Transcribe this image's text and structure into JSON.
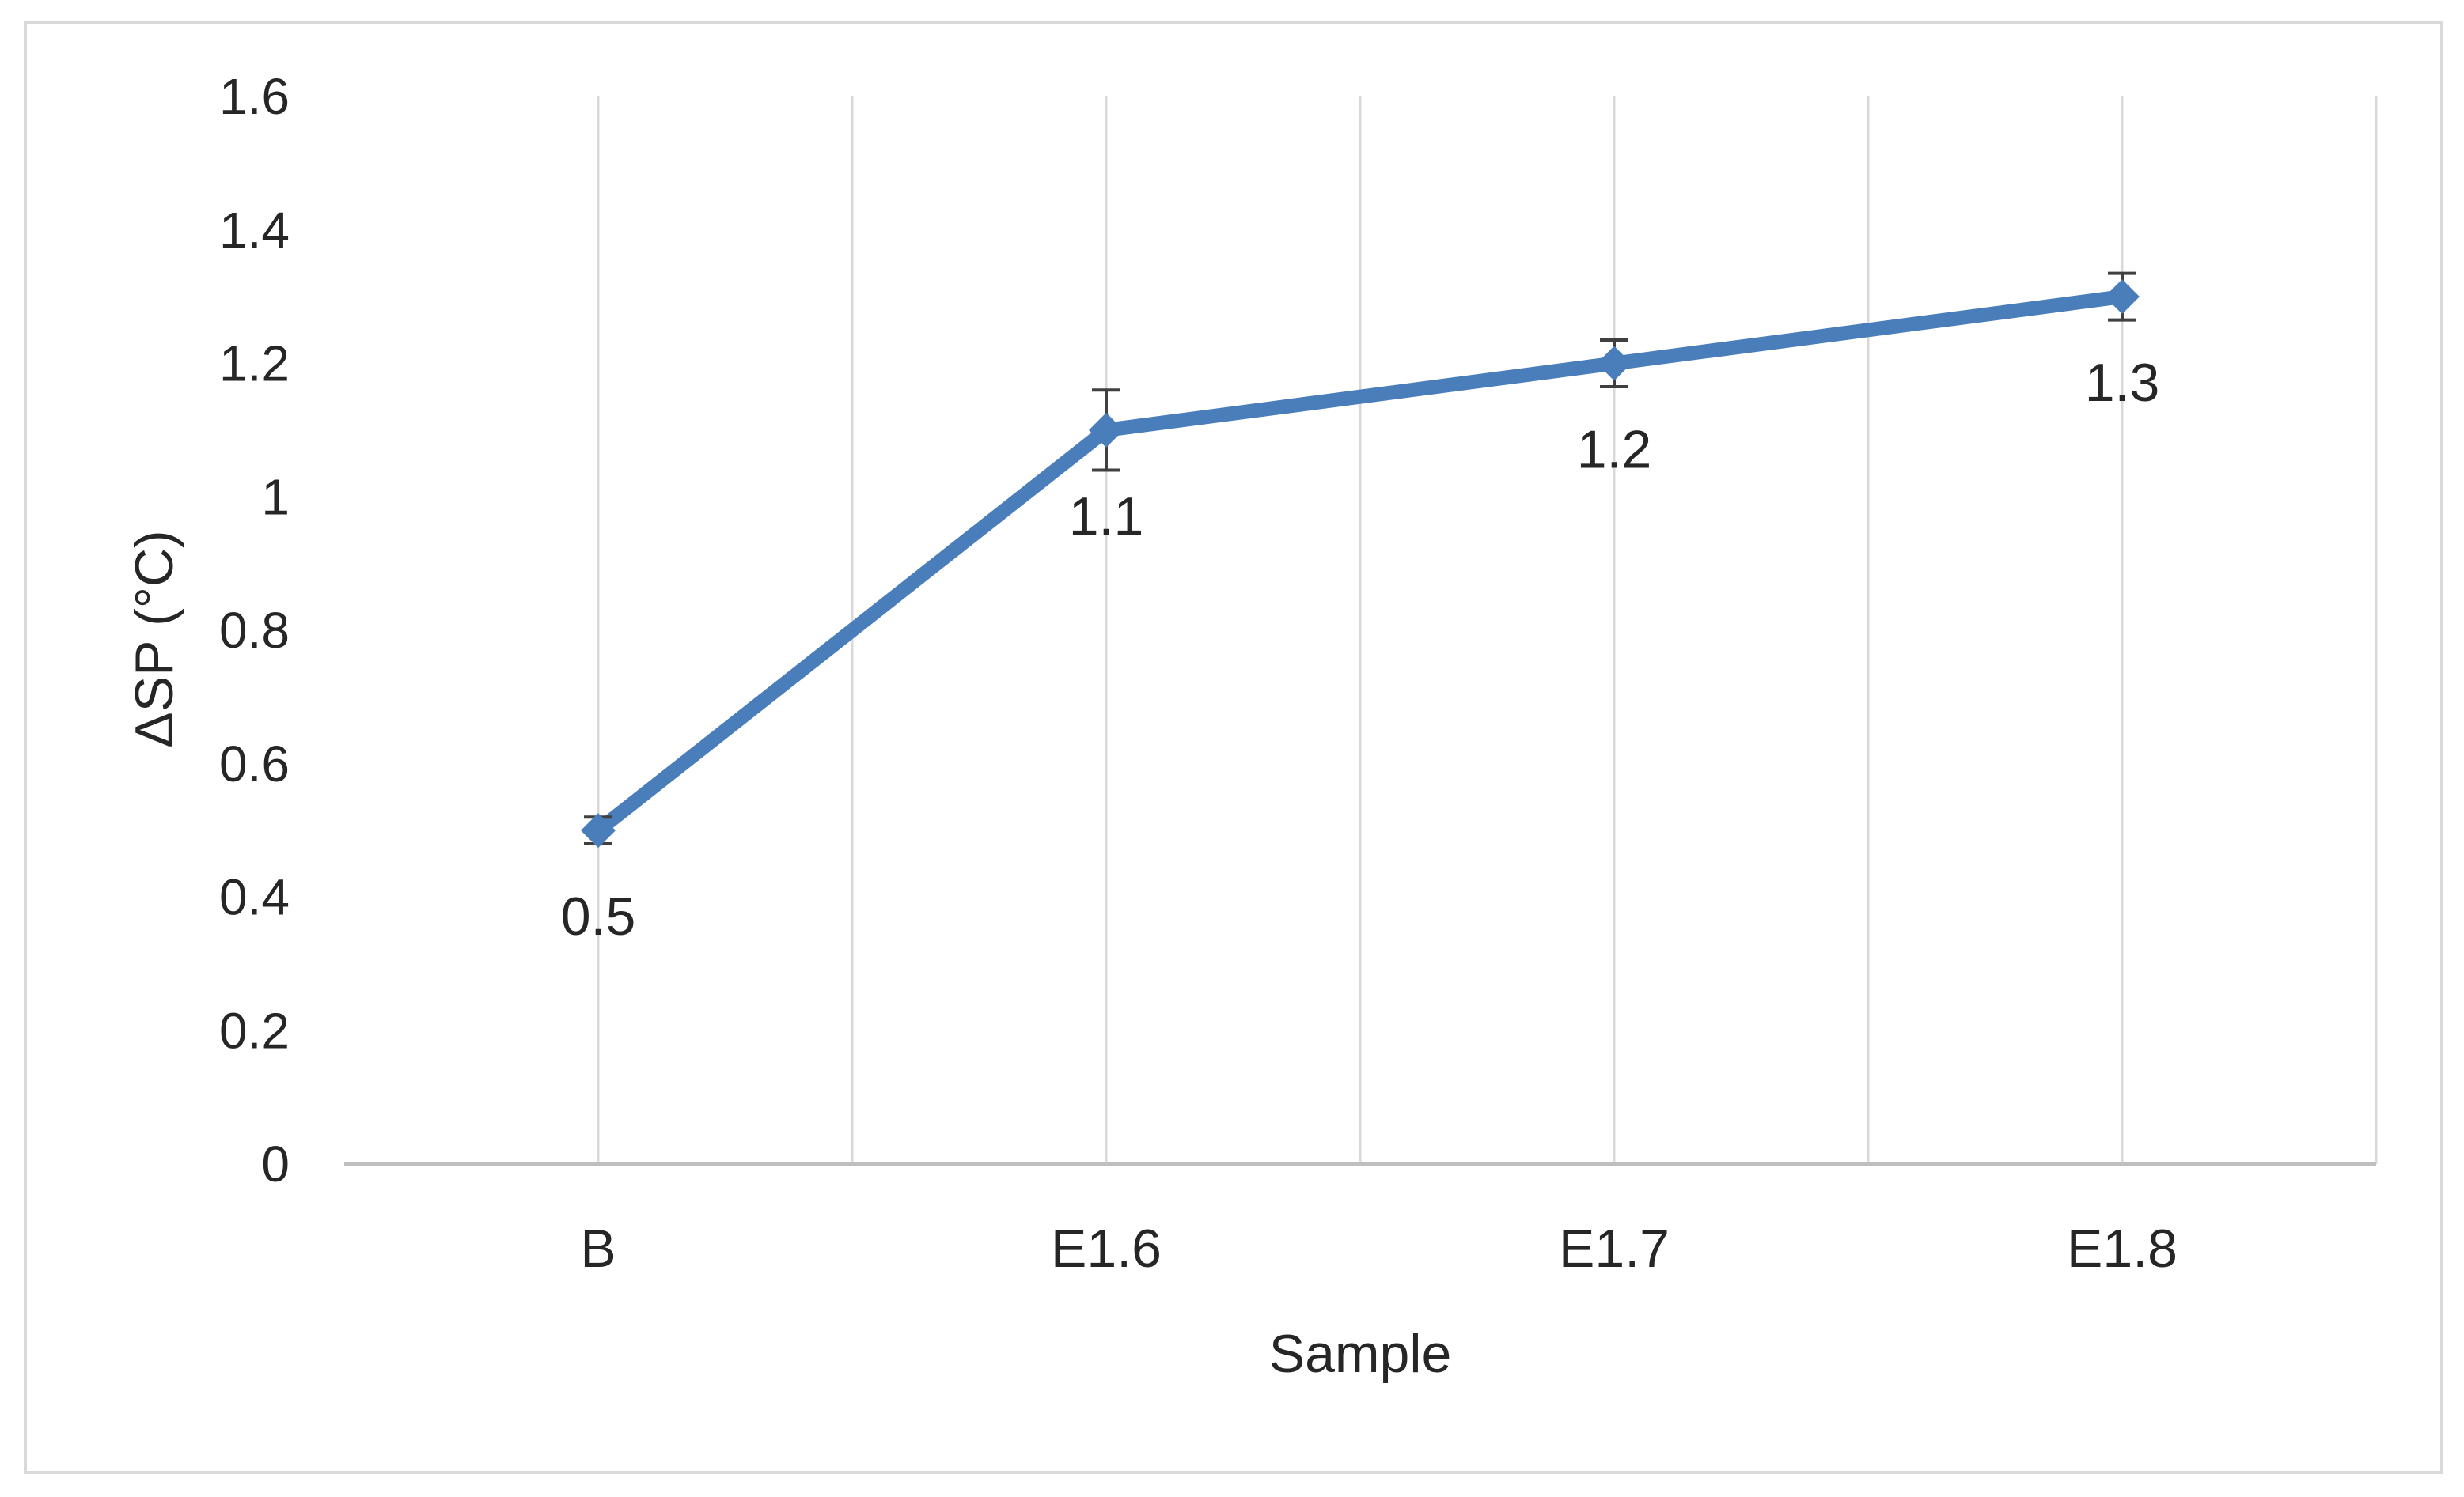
{
  "chart_data": {
    "type": "line",
    "title": "",
    "xlabel": "Sample",
    "ylabel": "ΔSP (°C)",
    "categories": [
      "B",
      "E1.6",
      "E1.7",
      "E1.8"
    ],
    "series": [
      {
        "values": [
          0.5,
          1.1,
          1.2,
          1.3
        ],
        "errors": [
          0.02,
          0.06,
          0.035,
          0.035
        ],
        "data_labels": [
          "0.5",
          "1.1",
          "1.2",
          "1.3"
        ],
        "color": "#4a7ebb"
      }
    ],
    "ylim": [
      0,
      1.6
    ],
    "yticks": [
      "0",
      "0.2",
      "0.4",
      "0.6",
      "0.8",
      "1",
      "1.2",
      "1.4",
      "1.6"
    ],
    "ytick_values": [
      0,
      0.2,
      0.4,
      0.6,
      0.8,
      1,
      1.2,
      1.4,
      1.6
    ],
    "grid": "vertical",
    "legend": "none",
    "colors": {
      "line": "#4a7ebb",
      "grid": "#d9d9d9",
      "axis": "#bfbfbf",
      "text": "#262626",
      "error_bar": "#404040",
      "border": "#d9d9d9"
    }
  }
}
